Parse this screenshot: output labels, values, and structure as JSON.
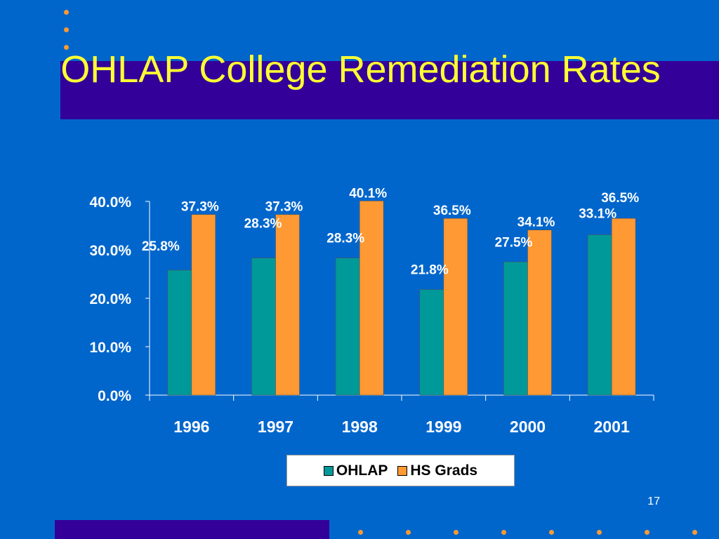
{
  "slide": {
    "title": "OHLAP College Remediation Rates",
    "number": "17"
  },
  "colors": {
    "background": "#0066cc",
    "band": "#330099",
    "title": "#ffff33",
    "dots": "#ff9933",
    "ohlap": "#009999",
    "hs_grads": "#ff9933"
  },
  "chart_data": {
    "type": "bar",
    "title": "",
    "xlabel": "",
    "ylabel": "",
    "categories": [
      "1996",
      "1997",
      "1998",
      "1999",
      "2000",
      "2001"
    ],
    "series": [
      {
        "name": "OHLAP",
        "values": [
          25.8,
          28.3,
          28.3,
          21.8,
          27.5,
          33.1
        ],
        "labels": [
          "25.8%",
          "28.3%",
          "28.3%",
          "21.8%",
          "27.5%",
          "33.1%"
        ]
      },
      {
        "name": "HS Grads",
        "values": [
          37.3,
          37.3,
          40.1,
          36.5,
          34.1,
          36.5
        ],
        "labels": [
          "37.3%",
          "37.3%",
          "40.1%",
          "36.5%",
          "34.1%",
          "36.5%"
        ]
      }
    ],
    "ylim": [
      0,
      40
    ],
    "yticks": [
      "0.0%",
      "10.0%",
      "20.0%",
      "30.0%",
      "40.0%"
    ],
    "grid": false,
    "legend_position": "bottom"
  }
}
